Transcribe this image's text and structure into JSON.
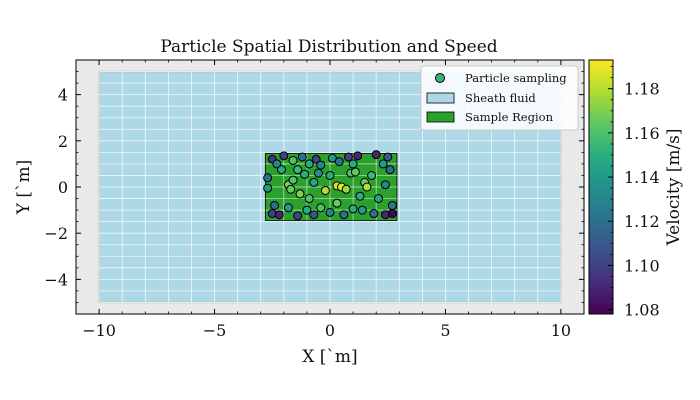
{
  "chart_data": {
    "type": "scatter",
    "title": "Particle Spatial Distribution and Speed",
    "xlabel": "X [`m]",
    "ylabel": "Y [`m]",
    "xlim": [
      -11,
      11
    ],
    "ylim": [
      -5.5,
      5.5
    ],
    "x_ticks": [
      -10,
      -5,
      0,
      5,
      10
    ],
    "y_ticks": [
      -4,
      -2,
      0,
      2,
      4
    ],
    "x_tick_labels": [
      "−10",
      "−5",
      "0",
      "5",
      "10"
    ],
    "y_tick_labels": [
      "−4",
      "−2",
      "0",
      "2",
      "4"
    ],
    "grid": true,
    "legend_position": "top-right",
    "legend": {
      "particles": "Particle sampling",
      "sheath": "Sheath fluid",
      "sample": "Sample Region"
    },
    "regions": {
      "sheath_fluid": {
        "x": [
          -10,
          10
        ],
        "y": [
          -5,
          5
        ],
        "color": "#add8e6"
      },
      "sample_region": {
        "x": [
          -2.8,
          2.9
        ],
        "y": [
          -1.45,
          1.45
        ],
        "color": "#2ca02c"
      }
    },
    "colorbar": {
      "label": "Velocity [m/s]",
      "min": 1.078,
      "max": 1.193,
      "ticks": [
        1.08,
        1.1,
        1.12,
        1.14,
        1.16,
        1.18
      ],
      "tick_labels": [
        "1.08",
        "1.10",
        "1.12",
        "1.14",
        "1.16",
        "1.18"
      ],
      "colormap": "viridis"
    },
    "points": [
      {
        "x": -2.5,
        "y": 1.2,
        "v": 1.095
      },
      {
        "x": -2.3,
        "y": 1.0,
        "v": 1.13
      },
      {
        "x": -2.0,
        "y": 1.35,
        "v": 1.1
      },
      {
        "x": -1.6,
        "y": 1.15,
        "v": 1.16
      },
      {
        "x": -1.2,
        "y": 1.3,
        "v": 1.12
      },
      {
        "x": -0.9,
        "y": 1.0,
        "v": 1.15
      },
      {
        "x": -0.6,
        "y": 1.2,
        "v": 1.1
      },
      {
        "x": -0.4,
        "y": 0.95,
        "v": 1.13
      },
      {
        "x": 0.1,
        "y": 1.25,
        "v": 1.14
      },
      {
        "x": 0.4,
        "y": 1.1,
        "v": 1.12
      },
      {
        "x": 0.8,
        "y": 1.3,
        "v": 1.1
      },
      {
        "x": 1.0,
        "y": 1.0,
        "v": 1.15
      },
      {
        "x": 1.2,
        "y": 1.35,
        "v": 1.09
      },
      {
        "x": 2.0,
        "y": 1.4,
        "v": 1.09
      },
      {
        "x": 2.5,
        "y": 1.3,
        "v": 1.11
      },
      {
        "x": 2.3,
        "y": 1.0,
        "v": 1.14
      },
      {
        "x": -2.7,
        "y": 0.4,
        "v": 1.12
      },
      {
        "x": -2.7,
        "y": -0.05,
        "v": 1.14
      },
      {
        "x": -2.1,
        "y": 0.75,
        "v": 1.15
      },
      {
        "x": -1.8,
        "y": 0.1,
        "v": 1.17
      },
      {
        "x": -1.7,
        "y": -0.1,
        "v": 1.165
      },
      {
        "x": -1.6,
        "y": 0.3,
        "v": 1.16
      },
      {
        "x": -1.4,
        "y": 0.75,
        "v": 1.155
      },
      {
        "x": -1.3,
        "y": -0.3,
        "v": 1.17
      },
      {
        "x": -1.1,
        "y": 0.55,
        "v": 1.15
      },
      {
        "x": -0.9,
        "y": -0.5,
        "v": 1.16
      },
      {
        "x": -0.7,
        "y": 0.2,
        "v": 1.145
      },
      {
        "x": -0.5,
        "y": 0.6,
        "v": 1.135
      },
      {
        "x": -0.2,
        "y": -0.15,
        "v": 1.18
      },
      {
        "x": 0.0,
        "y": 0.5,
        "v": 1.15
      },
      {
        "x": 0.3,
        "y": 0.05,
        "v": 1.185
      },
      {
        "x": 0.5,
        "y": 0.0,
        "v": 1.19
      },
      {
        "x": 0.7,
        "y": -0.1,
        "v": 1.175
      },
      {
        "x": 0.9,
        "y": 0.6,
        "v": 1.16
      },
      {
        "x": 1.1,
        "y": 0.65,
        "v": 1.165
      },
      {
        "x": 1.3,
        "y": -0.4,
        "v": 1.15
      },
      {
        "x": 1.5,
        "y": 0.2,
        "v": 1.165
      },
      {
        "x": 1.6,
        "y": 0.0,
        "v": 1.18
      },
      {
        "x": 1.8,
        "y": 0.5,
        "v": 1.155
      },
      {
        "x": 2.1,
        "y": -0.5,
        "v": 1.145
      },
      {
        "x": 2.4,
        "y": 0.1,
        "v": 1.13
      },
      {
        "x": 2.6,
        "y": 0.75,
        "v": 1.12
      },
      {
        "x": -2.4,
        "y": -0.8,
        "v": 1.12
      },
      {
        "x": -2.5,
        "y": -1.15,
        "v": 1.1
      },
      {
        "x": -2.2,
        "y": -1.2,
        "v": 1.09
      },
      {
        "x": -1.8,
        "y": -0.9,
        "v": 1.14
      },
      {
        "x": -1.4,
        "y": -1.25,
        "v": 1.1
      },
      {
        "x": -1.0,
        "y": -1.0,
        "v": 1.15
      },
      {
        "x": -0.7,
        "y": -1.2,
        "v": 1.11
      },
      {
        "x": -0.4,
        "y": -0.9,
        "v": 1.16
      },
      {
        "x": 0.0,
        "y": -1.1,
        "v": 1.13
      },
      {
        "x": 0.3,
        "y": -0.7,
        "v": 1.165
      },
      {
        "x": 0.6,
        "y": -1.2,
        "v": 1.12
      },
      {
        "x": 1.0,
        "y": -0.95,
        "v": 1.15
      },
      {
        "x": 1.4,
        "y": -1.0,
        "v": 1.14
      },
      {
        "x": 1.9,
        "y": -1.15,
        "v": 1.12
      },
      {
        "x": 2.4,
        "y": -1.2,
        "v": 1.09
      },
      {
        "x": 2.7,
        "y": -0.8,
        "v": 1.125
      },
      {
        "x": 2.7,
        "y": -1.15,
        "v": 1.08
      }
    ]
  }
}
